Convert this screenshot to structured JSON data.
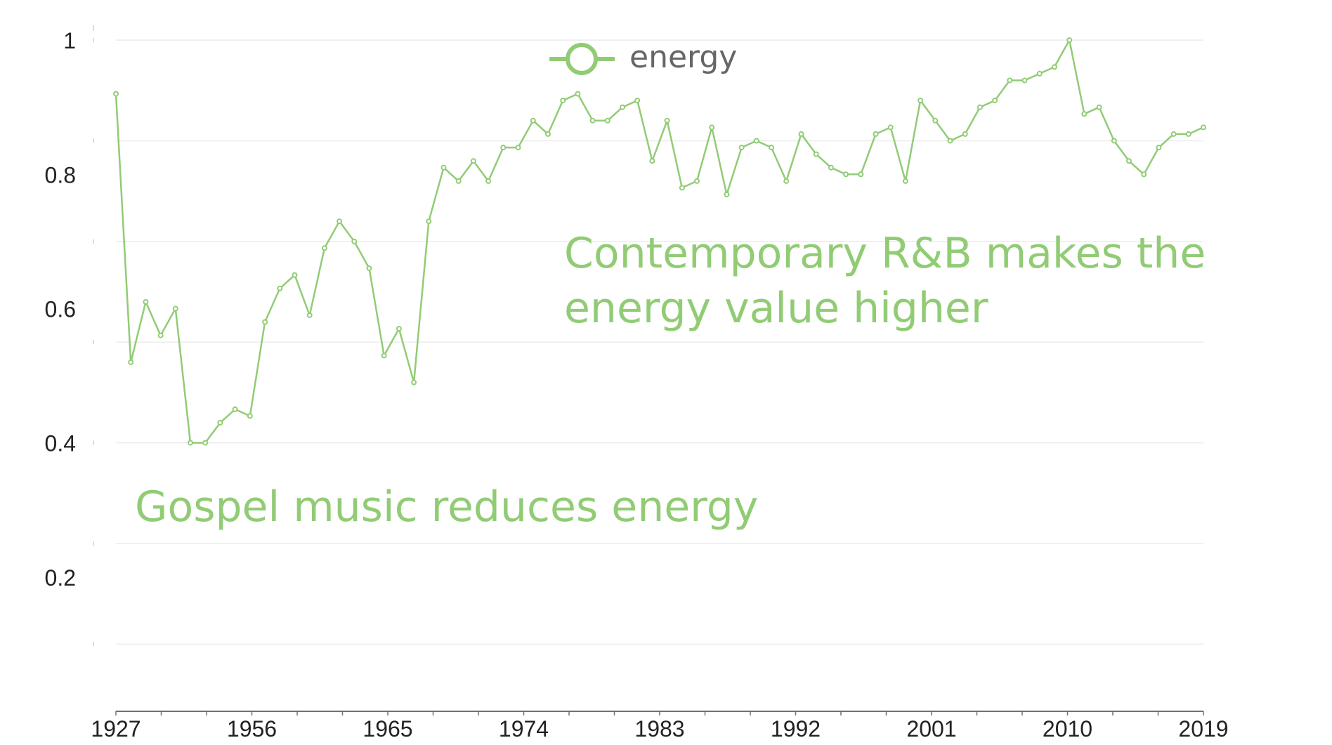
{
  "chart_data": {
    "type": "line",
    "title": "",
    "xlabel": "",
    "ylabel": "",
    "ylim": [
      0,
      1.02
    ],
    "yticks": [
      {
        "value": 1.0,
        "label": "1"
      },
      {
        "value": 0.8,
        "label": "0.8"
      },
      {
        "value": 0.6,
        "label": "0.6"
      },
      {
        "value": 0.4,
        "label": "0.4"
      },
      {
        "value": 0.2,
        "label": "0.2"
      }
    ],
    "grid_values": [
      1.0,
      0.85,
      0.7,
      0.55,
      0.4,
      0.25,
      0.1
    ],
    "xtick_labels": [
      "1927",
      "1956",
      "1965",
      "1974",
      "1983",
      "1992",
      "2001",
      "2010",
      "2019"
    ],
    "legend": {
      "position": "top-center",
      "entries": [
        {
          "name": "energy",
          "color": "#91cc75"
        }
      ]
    },
    "series": [
      {
        "name": "energy",
        "color": "#91cc75",
        "values": [
          0.92,
          0.52,
          0.61,
          0.56,
          0.6,
          0.4,
          0.4,
          0.43,
          0.45,
          0.44,
          0.58,
          0.63,
          0.65,
          0.59,
          0.69,
          0.73,
          0.7,
          0.66,
          0.53,
          0.57,
          0.49,
          0.73,
          0.81,
          0.79,
          0.82,
          0.79,
          0.84,
          0.84,
          0.88,
          0.86,
          0.91,
          0.92,
          0.88,
          0.88,
          0.9,
          0.91,
          0.82,
          0.88,
          0.78,
          0.79,
          0.87,
          0.77,
          0.84,
          0.85,
          0.84,
          0.79,
          0.86,
          0.83,
          0.81,
          0.8,
          0.8,
          0.86,
          0.87,
          0.79,
          0.91,
          0.88,
          0.85,
          0.86,
          0.9,
          0.91,
          0.94,
          0.94,
          0.95,
          0.96,
          1.0,
          0.89,
          0.9,
          0.85,
          0.82,
          0.8,
          0.84,
          0.86,
          0.86,
          0.87
        ]
      }
    ],
    "annotations": [
      {
        "id": "gospel",
        "lines": [
          "Gospel music reduces energy"
        ],
        "color": "#91cc75"
      },
      {
        "id": "rnb",
        "lines": [
          "Contemporary R&B makes the",
          "energy value higher"
        ],
        "color": "#91cc75"
      }
    ]
  }
}
